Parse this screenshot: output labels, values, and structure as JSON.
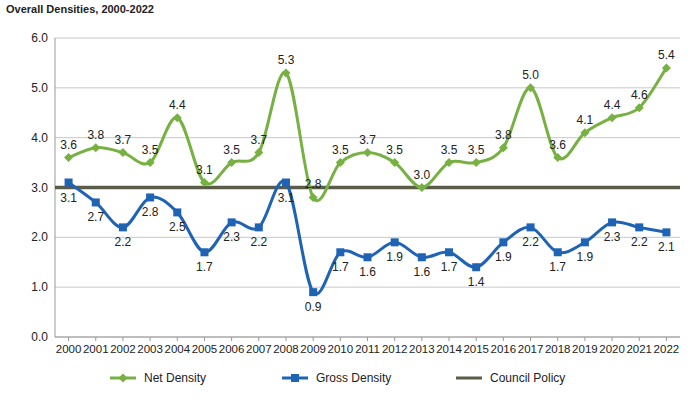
{
  "chart_data": {
    "type": "line",
    "title": "Overall Densities, 2000-2022",
    "categories": [
      "2000",
      "2001",
      "2002",
      "2003",
      "2004",
      "2005",
      "2006",
      "2007",
      "2008",
      "2009",
      "2010",
      "2011",
      "2012",
      "2013",
      "2014",
      "2015",
      "2016",
      "2017",
      "2018",
      "2019",
      "2020",
      "2021",
      "2022"
    ],
    "series": [
      {
        "name": "Net Density",
        "color": "#77b043",
        "marker": "diamond",
        "line_style": "smooth",
        "values": [
          3.6,
          3.8,
          3.7,
          3.5,
          4.4,
          3.1,
          3.5,
          3.7,
          5.3,
          2.8,
          3.5,
          3.7,
          3.5,
          3.0,
          3.5,
          3.5,
          3.8,
          5.0,
          3.6,
          4.1,
          4.4,
          4.6,
          5.4
        ],
        "value_labels": [
          "3.6",
          "3.8",
          "3.7",
          "3.5",
          "4.4",
          "3.1",
          "3.5",
          "3.7",
          "5.3",
          "2.8",
          "3.5",
          "3.7",
          "3.5",
          "3.0",
          "3.5",
          "3.5",
          "3.8",
          "5.0",
          "3.6",
          "4.1",
          "4.4",
          "4.6",
          "5.4"
        ]
      },
      {
        "name": "Gross Density",
        "color": "#1f63b5",
        "marker": "square",
        "line_style": "smooth",
        "values": [
          3.1,
          2.7,
          2.2,
          2.8,
          2.5,
          1.7,
          2.3,
          2.2,
          3.1,
          0.9,
          1.7,
          1.6,
          1.9,
          1.6,
          1.7,
          1.4,
          1.9,
          2.2,
          1.7,
          1.9,
          2.3,
          2.2,
          2.1
        ],
        "value_labels": [
          "3.1",
          "2.7",
          "2.2",
          "2.8",
          "2.5",
          "1.7",
          "2.3",
          "2.2",
          "3.1",
          "0.9",
          "1.7",
          "1.6",
          "1.9",
          "1.6",
          "1.7",
          "1.4",
          "1.9",
          "2.2",
          "1.7",
          "1.9",
          "2.3",
          "2.2",
          "2.1"
        ]
      },
      {
        "name": "Council Policy",
        "color": "#5b5b4a",
        "marker": "none",
        "line_style": "solid",
        "values": [
          3.0,
          3.0,
          3.0,
          3.0,
          3.0,
          3.0,
          3.0,
          3.0,
          3.0,
          3.0,
          3.0,
          3.0,
          3.0,
          3.0,
          3.0,
          3.0,
          3.0,
          3.0,
          3.0,
          3.0,
          3.0,
          3.0,
          3.0
        ]
      }
    ],
    "ylim": [
      0,
      6
    ],
    "yticks": [
      {
        "value": 0,
        "label": "0.0"
      },
      {
        "value": 1,
        "label": "1.0"
      },
      {
        "value": 2,
        "label": "2.0"
      },
      {
        "value": 3,
        "label": "3.0"
      },
      {
        "value": 4,
        "label": "4.0"
      },
      {
        "value": 5,
        "label": "5.0"
      },
      {
        "value": 6,
        "label": "6.0"
      }
    ],
    "grid": true,
    "legend": "bottom",
    "data_labels": true
  }
}
